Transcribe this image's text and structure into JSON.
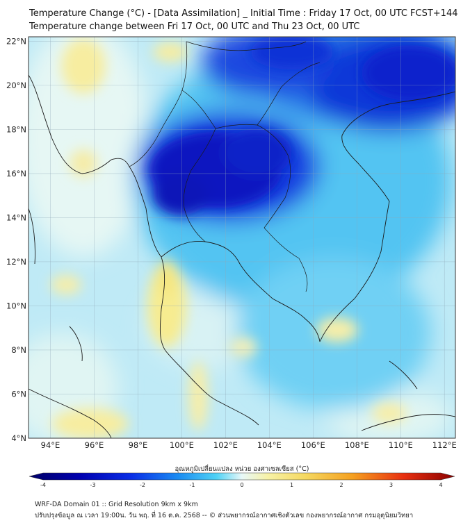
{
  "title": {
    "line1": "Temperature Change (°C) - [Data Assimilation] _ Initial Time : Friday 17 Oct, 00 UTC FCST+144",
    "line2": "Temperature change between Fri 17 Oct, 00 UTC and Thu 23 Oct, 00 UTC"
  },
  "axes": {
    "lon_labels": [
      "94°E",
      "96°E",
      "98°E",
      "100°E",
      "102°E",
      "104°E",
      "106°E",
      "108°E",
      "110°E",
      "112°E"
    ],
    "lat_labels": [
      "22°N",
      "20°N",
      "18°N",
      "16°N",
      "14°N",
      "12°N",
      "10°N",
      "8°N",
      "6°N",
      "4°N"
    ],
    "lon_range": [
      93,
      112.5
    ],
    "lat_range": [
      4,
      22.2
    ]
  },
  "colorbar": {
    "label": "อุณหภูมิเปลี่ยนแปลง หน่วย องศาเซลเซียส (°C)",
    "ticks": [
      "-4",
      "-3",
      "-2",
      "-1",
      "0",
      "1",
      "2",
      "3",
      "4"
    ],
    "range": [
      -4,
      4
    ],
    "colors": [
      "#000066",
      "#0000b0",
      "#0a1ee0",
      "#1560f0",
      "#20a8f5",
      "#4fd2f5",
      "#a6ecf7",
      "#dff6f8",
      "#f7f5b8",
      "#f5e070",
      "#f5b020",
      "#f06010",
      "#d81010",
      "#8a0000"
    ]
  },
  "footer": {
    "line1": "WRF-DA Domain 01 :: Grid Resolution 9km x 9km",
    "line2": "ปรับปรุงข้อมูล ณ เวลา 19:00น. วัน พฤ. ที่ 16 ต.ค. 2568 -- © ส่วนพยากรณ์อากาศเชิงตัวเลข กองพยากรณ์อากาศ กรมอุตุนิยมวิทยา"
  }
}
